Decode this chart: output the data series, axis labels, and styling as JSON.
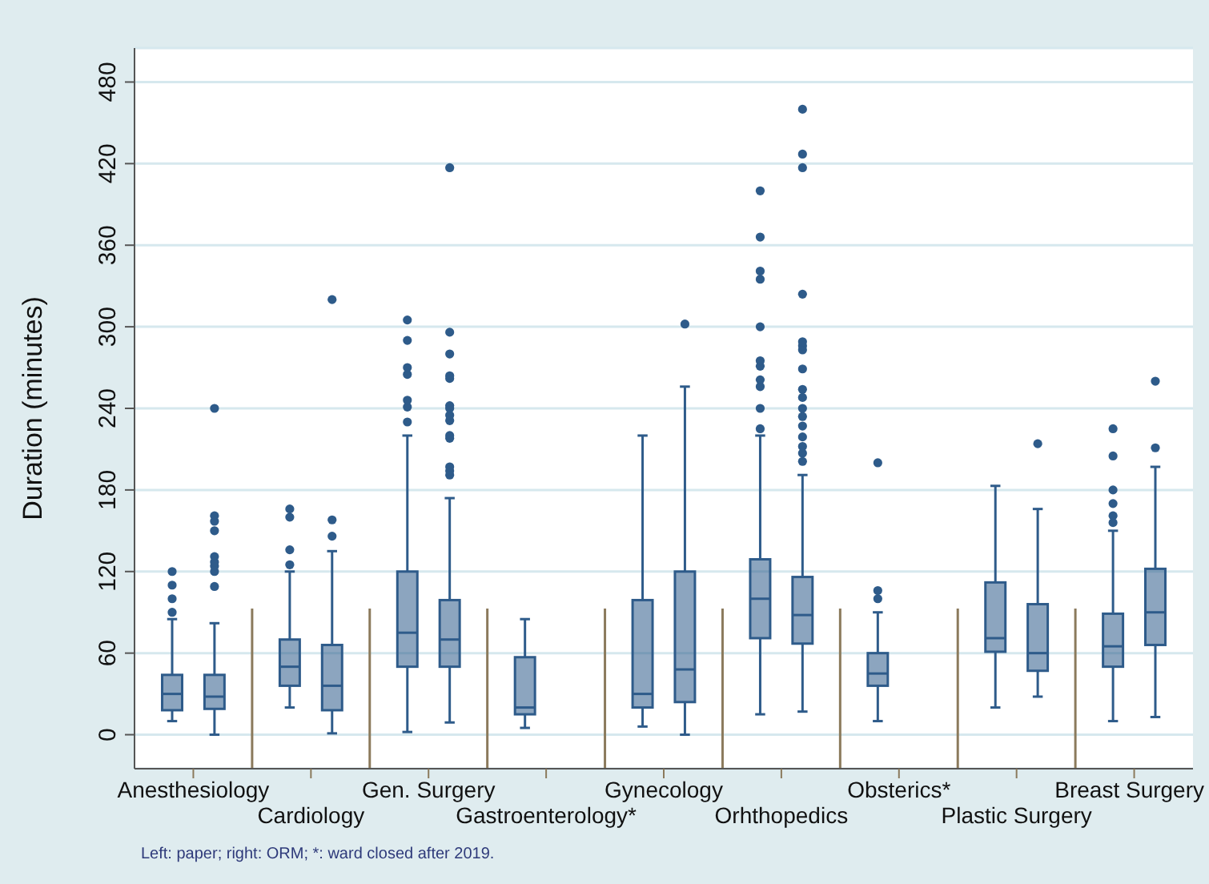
{
  "chart_data": {
    "type": "box",
    "ylabel": "Duration (minutes)",
    "categories": [
      "Anesthesiology",
      "Cardiology",
      "Gen. Surgery",
      "Gastroenterology*",
      "Gynecology",
      "Orhthopedics",
      "Obsterics*",
      "Plastic Surgery",
      "Breast Surgery"
    ],
    "ylim": [
      -25,
      505
    ],
    "yticks": [
      0,
      60,
      120,
      180,
      240,
      300,
      360,
      420,
      480
    ],
    "grid": "y",
    "annotations": [
      "Left: paper; right: ORM; *: ward closed after 2019."
    ],
    "series": [
      {
        "color": "#2e5b8a",
        "boxes": [
          {
            "low": 10,
            "q1": 18,
            "median": 30,
            "q3": 44,
            "high": 85,
            "outliers": [
              90,
              100,
              110,
              120
            ]
          },
          {
            "low": 20,
            "q1": 36,
            "median": 50,
            "q3": 70,
            "high": 120,
            "outliers": [
              125,
              136,
              160,
              166
            ]
          },
          {
            "low": 2,
            "q1": 50,
            "median": 75,
            "q3": 120,
            "high": 220,
            "outliers": [
              230,
              241,
              246,
              265,
              270,
              290,
              305
            ]
          },
          {
            "low": 5,
            "q1": 15,
            "median": 20,
            "q3": 57,
            "high": 85
          },
          {
            "low": 6,
            "q1": 20,
            "median": 30,
            "q3": 99,
            "high": 220
          },
          {
            "low": 15,
            "q1": 71,
            "median": 100,
            "q3": 129,
            "high": 220,
            "outliers": [
              225,
              240,
              256,
              261,
              271,
              275,
              300,
              335,
              341,
              366,
              400
            ]
          },
          {
            "low": 10,
            "q1": 36,
            "median": 45,
            "q3": 60,
            "high": 90,
            "outliers": [
              100,
              106,
              200
            ]
          },
          {
            "low": 20,
            "q1": 61,
            "median": 71,
            "q3": 112,
            "high": 183
          },
          {
            "low": 10,
            "q1": 50,
            "median": 65,
            "q3": 89,
            "high": 150,
            "outliers": [
              156,
              161,
              170,
              180,
              205,
              225
            ]
          }
        ]
      },
      {
        "color": "#2e5b8a",
        "boxes": [
          {
            "low": 0,
            "q1": 19,
            "median": 28,
            "q3": 44,
            "high": 82,
            "outliers": [
              109,
              120,
              124,
              127,
              131,
              150,
              157,
              161,
              240
            ]
          },
          {
            "low": 1,
            "q1": 18,
            "median": 36,
            "q3": 66,
            "high": 135,
            "outliers": [
              146,
              158,
              320
            ]
          },
          {
            "low": 9,
            "q1": 50,
            "median": 70,
            "q3": 99,
            "high": 174,
            "outliers": [
              191,
              194,
              197,
              218,
              220,
              231,
              235,
              240,
              242,
              262,
              264,
              280,
              296,
              417
            ]
          },
          null,
          {
            "low": 0,
            "q1": 24,
            "median": 48,
            "q3": 120,
            "high": 256,
            "outliers": [
              302
            ]
          },
          {
            "low": 17,
            "q1": 67,
            "median": 88,
            "q3": 116,
            "high": 191,
            "outliers": [
              201,
              207,
              212,
              219,
              227,
              234,
              240,
              248,
              254,
              269,
              283,
              286,
              289,
              324,
              417,
              427,
              460
            ]
          },
          null,
          {
            "low": 28,
            "q1": 47,
            "median": 60,
            "q3": 96,
            "high": 166,
            "outliers": [
              214
            ]
          },
          {
            "low": 13,
            "q1": 66,
            "median": 90,
            "q3": 122,
            "high": 197,
            "outliers": [
              211,
              260
            ]
          }
        ]
      }
    ]
  }
}
